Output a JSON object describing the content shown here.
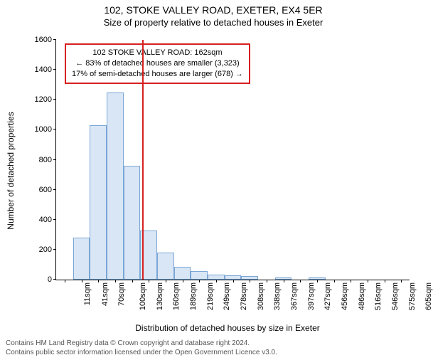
{
  "title": {
    "line1": "102, STOKE VALLEY ROAD, EXETER, EX4 5ER",
    "line2": "Size of property relative to detached houses in Exeter"
  },
  "axes": {
    "xlabel": "Distribution of detached houses by size in Exeter",
    "ylabel": "Number of detached properties",
    "ylim": [
      0,
      1600
    ],
    "ytick_step": 200,
    "yticks": [
      0,
      200,
      400,
      600,
      800,
      1000,
      1200,
      1400,
      1600
    ],
    "xtick_labels": [
      "11sqm",
      "41sqm",
      "70sqm",
      "100sqm",
      "130sqm",
      "160sqm",
      "189sqm",
      "219sqm",
      "249sqm",
      "278sqm",
      "308sqm",
      "338sqm",
      "367sqm",
      "397sqm",
      "427sqm",
      "456sqm",
      "486sqm",
      "516sqm",
      "546sqm",
      "575sqm",
      "605sqm"
    ]
  },
  "histogram": {
    "type": "histogram",
    "bar_fill": "#d9e6f5",
    "bar_stroke": "#7aa6d6",
    "background_color": "#ffffff",
    "axis_color": "#000000",
    "values": [
      0,
      280,
      1030,
      1250,
      760,
      330,
      180,
      85,
      55,
      35,
      28,
      22,
      0,
      14,
      0,
      12,
      0,
      0,
      0,
      0,
      0
    ]
  },
  "reference_line": {
    "value_sqm": 162,
    "bin_index": 5,
    "color": "#d62020"
  },
  "annotation": {
    "border_color": "#d62020",
    "line1": "102 STOKE VALLEY ROAD: 162sqm",
    "line2": "← 83% of detached houses are smaller (3,323)",
    "line3": "17% of semi-detached houses are larger (678) →"
  },
  "credits": {
    "line1": "Contains HM Land Registry data © Crown copyright and database right 2024.",
    "line2": "Contains public sector information licensed under the Open Government Licence v3.0."
  }
}
